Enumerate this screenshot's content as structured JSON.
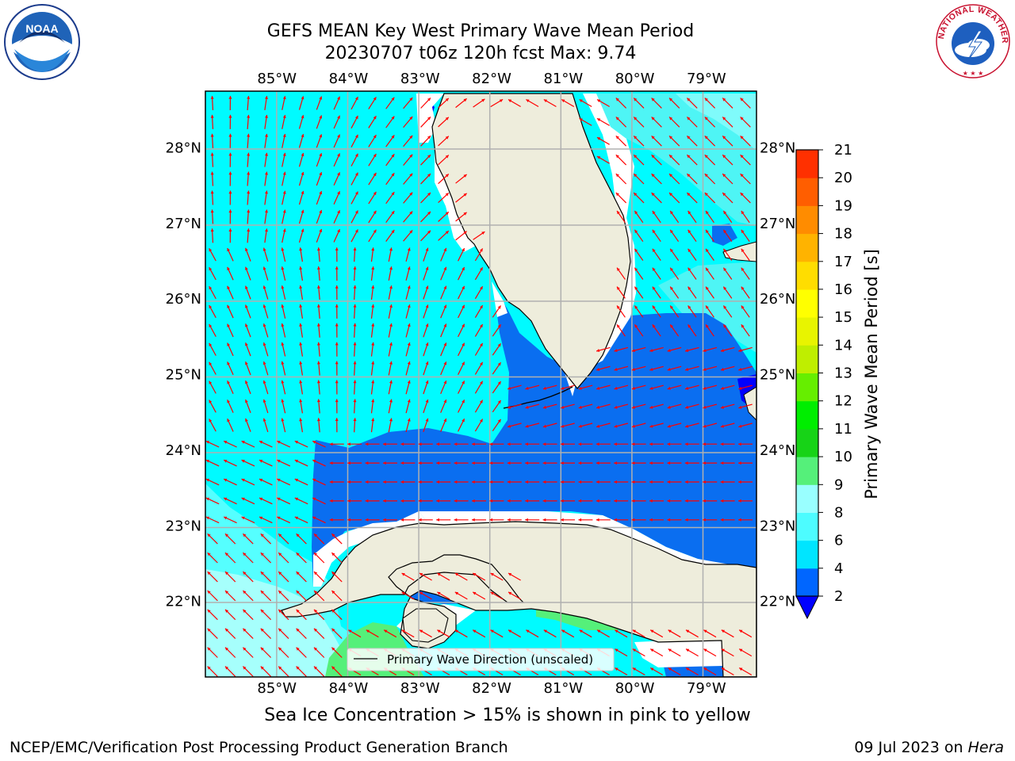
{
  "title": {
    "line1": "GEFS MEAN Key West Primary Wave Mean Period",
    "line2": "20230707 t06z 120h fcst   Max: 9.74"
  },
  "logos": {
    "left": "noaa-logo",
    "left_text": "NOAA",
    "right": "nws-logo",
    "right_text": "NATIONAL WEATHER SERVICE"
  },
  "map": {
    "lon_labels": [
      "85°W",
      "84°W",
      "83°W",
      "82°W",
      "81°W",
      "80°W",
      "79°W"
    ],
    "lat_labels": [
      "28°N",
      "27°N",
      "26°N",
      "25°N",
      "24°N",
      "23°N",
      "22°N"
    ],
    "lon_values": [
      -85,
      -84,
      -83,
      -82,
      -81,
      -80,
      -79
    ],
    "lat_values": [
      28,
      27,
      26,
      25,
      24,
      23,
      22
    ],
    "extent": {
      "lon_min": -86.0,
      "lon_max": -78.3,
      "lat_min": 21.0,
      "lat_max": 28.75
    },
    "legend_label": "Primary Wave Direction (unscaled)",
    "arrow_color": "#ff0000",
    "land_color": "#eeeddc",
    "grid_color": "#b0b0b0"
  },
  "colorbar": {
    "label": "Primary Wave Mean Period [s]",
    "ticks": [
      2,
      4,
      6,
      8,
      9,
      10,
      11,
      12,
      13,
      14,
      15,
      16,
      17,
      18,
      19,
      20,
      21
    ],
    "colors": [
      "#0066ff",
      "#00e5ff",
      "#4dfcff",
      "#99ffff",
      "#55f07a",
      "#17d317",
      "#00ee00",
      "#66ee00",
      "#bfee00",
      "#e8f400",
      "#ffff00",
      "#ffdd00",
      "#ffb300",
      "#ff8c00",
      "#ff5e00",
      "#ff3000",
      "#ff0000"
    ],
    "under_color": "#0000ff"
  },
  "ice_note": "Sea Ice Concentration > 15% is shown in pink to yellow",
  "footer": {
    "left": "NCEP/EMC/Verification Post Processing Product Generation Branch",
    "right_date": "09 Jul 2023 on ",
    "right_machine": "Hera"
  }
}
